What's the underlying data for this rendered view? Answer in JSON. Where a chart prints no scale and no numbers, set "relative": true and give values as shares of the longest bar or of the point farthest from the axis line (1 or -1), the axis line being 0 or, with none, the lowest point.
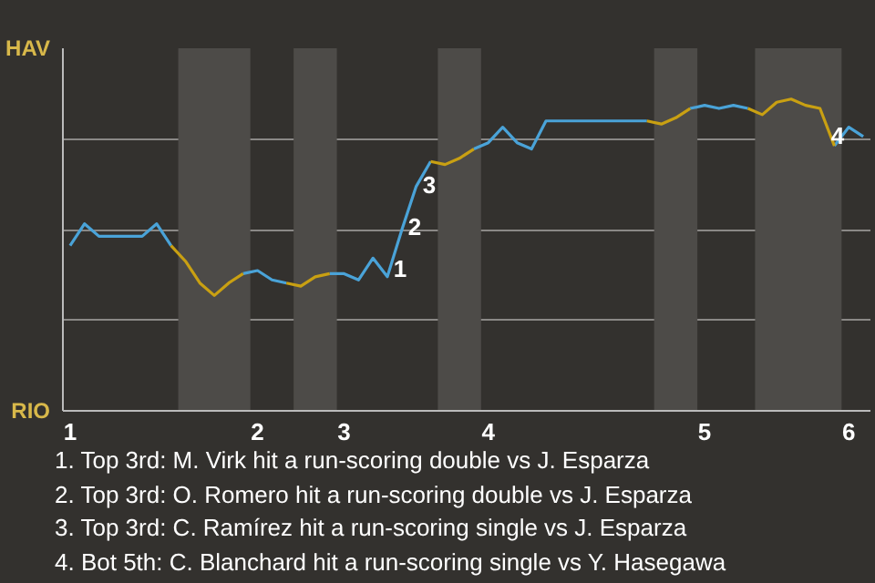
{
  "chart_data": {
    "type": "line",
    "relative": true,
    "categories": [
      "1",
      null,
      null,
      null,
      null,
      null,
      null,
      null,
      null,
      null,
      null,
      null,
      null,
      "2",
      null,
      null,
      null,
      null,
      null,
      "3",
      null,
      null,
      null,
      null,
      null,
      null,
      null,
      null,
      null,
      "4",
      null,
      null,
      null,
      null,
      null,
      null,
      null,
      null,
      null,
      null,
      null,
      null,
      null,
      null,
      "5",
      null,
      null,
      null,
      null,
      null,
      null,
      null,
      null,
      null,
      "6",
      null
    ],
    "grid": "y",
    "line_style": "solid",
    "series": [
      {
        "color": "#4aa3d8",
        "values": [
          0.53,
          0.6,
          0.56,
          0.56,
          0.56,
          0.56,
          0.6,
          0.53,
          null,
          null,
          null,
          null,
          0.44,
          0.45,
          0.42,
          0.41,
          null,
          null,
          0.44,
          0.44,
          0.42,
          0.49,
          0.43,
          0.58,
          0.72,
          0.8,
          null,
          null,
          0.84,
          0.86,
          0.91,
          0.86,
          0.84,
          0.93,
          0.93,
          0.93,
          0.93,
          0.93,
          0.93,
          0.93,
          0.93,
          null,
          null,
          0.97,
          0.98,
          0.97,
          0.98,
          0.97,
          null,
          null,
          null,
          null,
          null,
          0.85,
          0.91,
          0.88
        ]
      },
      {
        "color": "#c9a012",
        "values": [
          null,
          null,
          null,
          null,
          null,
          null,
          null,
          0.53,
          0.48,
          0.41,
          0.37,
          0.41,
          0.44,
          null,
          null,
          0.41,
          0.4,
          0.43,
          0.44,
          null,
          null,
          null,
          null,
          null,
          null,
          0.8,
          0.79,
          0.81,
          0.84,
          null,
          null,
          null,
          null,
          null,
          null,
          null,
          null,
          null,
          null,
          null,
          0.93,
          0.92,
          0.94,
          0.97,
          null,
          null,
          null,
          0.97,
          0.95,
          0.99,
          1,
          0.98,
          0.97,
          0.85,
          null,
          null
        ]
      }
    ],
    "annotations": [
      "HAV",
      "RIO",
      "1",
      "2",
      "3",
      "4",
      "1. Top 3rd: M. Virk hit a run-scoring double vs J. Esparza",
      "2. Top 3rd: O. Romero hit a run-scoring double vs J. Esparza",
      "3. Top 3rd: C. Ramírez hit a run-scoring single vs J. Esparza",
      "4. Bot 5th: C. Blanchard hit a run-scoring single vs Y. Hasegawa"
    ]
  }
}
